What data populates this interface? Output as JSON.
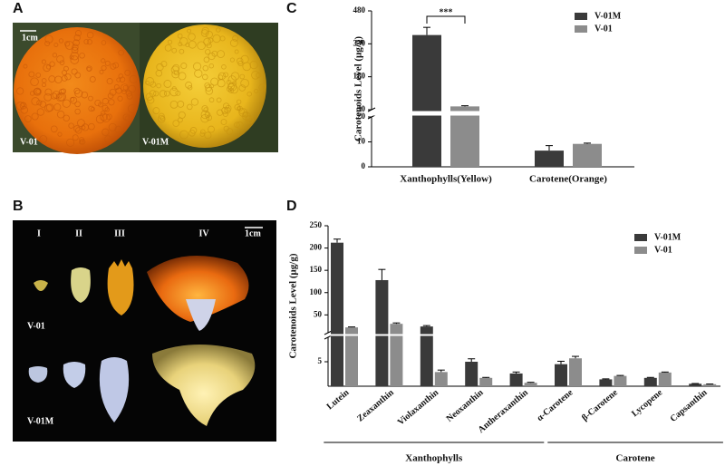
{
  "photos": {
    "A": {
      "panel": "A",
      "scale": "1cm",
      "left_label": "V-01",
      "right_label": "V-01M"
    },
    "B": {
      "panel": "B",
      "scale": "1cm",
      "stages": [
        "I",
        "II",
        "III",
        "IV"
      ],
      "rows": [
        "V-01",
        "V-01M"
      ]
    }
  },
  "chart_data": [
    {
      "type": "bar",
      "panel": "C",
      "y_label": "Carotenoids Level (μg/g)",
      "categories": [
        "Xanthophylls(Yellow)",
        "Carotene(Orange)"
      ],
      "series": [
        {
          "name": "V-01M",
          "color": "#3a3a3a",
          "values": [
            370,
            6.5
          ],
          "errors": [
            35,
            2
          ]
        },
        {
          "name": "V-01",
          "color": "#8c8c8c",
          "values": [
            45,
            9.2
          ],
          "errors": [
            3,
            0.3
          ]
        }
      ],
      "ylim": [
        0,
        480
      ],
      "ybreak": [
        20,
        30
      ],
      "yticks": [
        0,
        10,
        20,
        30,
        180,
        330,
        480
      ],
      "significance": "***",
      "legend": "upper right"
    },
    {
      "type": "bar",
      "panel": "D",
      "y_label": "Carotenoids Level (μg/g)",
      "categories": [
        "Lutein",
        "Zeaxanthin",
        "Violaxanthin",
        "Neoxanthin",
        "Antheraxanthin",
        "α-Carotene",
        "β-Carotene",
        "Lycopene",
        "Capsanthin"
      ],
      "series": [
        {
          "name": "V-01M",
          "color": "#3a3a3a",
          "values": [
            212,
            128,
            24,
            5.0,
            2.6,
            4.5,
            1.4,
            1.7,
            0.5
          ],
          "errors": [
            8,
            24,
            2,
            0.6,
            0.3,
            0.6,
            0.1,
            0.1,
            0.05
          ]
        },
        {
          "name": "V-01",
          "color": "#8c8c8c",
          "values": [
            22,
            30,
            2.9,
            1.7,
            0.7,
            5.7,
            2.1,
            2.8,
            0.4
          ],
          "errors": [
            1,
            2,
            0.4,
            0.1,
            0.1,
            0.4,
            0.1,
            0.1,
            0.05
          ]
        }
      ],
      "ylim": [
        0,
        250
      ],
      "ybreak": [
        10,
        10
      ],
      "yticks": [
        5,
        50,
        100,
        150,
        200,
        250
      ],
      "groups": [
        {
          "label": "Xanthophylls",
          "members": [
            "Lutein",
            "Zeaxanthin",
            "Violaxanthin",
            "Neoxanthin",
            "Antheraxanthin"
          ]
        },
        {
          "label": "Carotene",
          "members": [
            "α-Carotene",
            "β-Carotene",
            "Lycopene",
            "Capsanthin"
          ]
        }
      ],
      "legend": "upper right"
    }
  ]
}
